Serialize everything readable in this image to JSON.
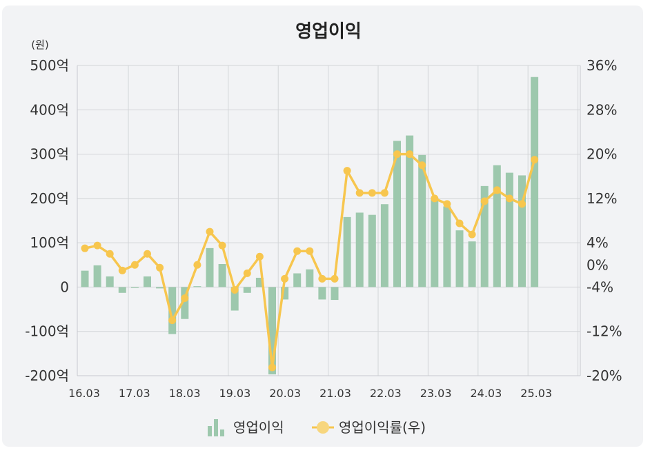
{
  "chart_data": {
    "type": "bar+line",
    "title": "영업이익",
    "left_unit": "(원)",
    "left_ticks": [
      "500억",
      "400억",
      "300억",
      "200억",
      "100억",
      "0",
      "-100억",
      "-200억"
    ],
    "left_range": [
      -200,
      500
    ],
    "right_ticks": [
      "36%",
      "28%",
      "20%",
      "12%",
      "4%",
      "0%",
      "-4%",
      "-12%",
      "-20%"
    ],
    "right_range": [
      -20,
      36
    ],
    "x_tick_labels": [
      "16.03",
      "17.03",
      "18.03",
      "19.03",
      "20.03",
      "21.03",
      "22.03",
      "23.03",
      "24.03",
      "25.03"
    ],
    "categories": [
      "16.03",
      "16.06",
      "16.09",
      "16.12",
      "17.03",
      "17.06",
      "17.09",
      "17.12",
      "18.03",
      "18.06",
      "18.09",
      "18.12",
      "19.03",
      "19.06",
      "19.09",
      "19.12",
      "20.03",
      "20.06",
      "20.09",
      "20.12",
      "21.03",
      "21.06",
      "21.09",
      "21.12",
      "22.03",
      "22.06",
      "22.09",
      "22.12",
      "23.03",
      "23.06",
      "23.09",
      "23.12",
      "24.03",
      "24.06",
      "24.09",
      "24.12",
      "25.03"
    ],
    "series": [
      {
        "name": "영업이익",
        "kind": "bar",
        "color": "#9dc8ad",
        "values": [
          37,
          49,
          24,
          -13,
          -2,
          24,
          -3,
          -106,
          -72,
          2,
          88,
          52,
          -53,
          -13,
          21,
          -197,
          -28,
          31,
          40,
          -28,
          -29,
          158,
          168,
          163,
          187,
          330,
          342,
          298,
          200,
          182,
          128,
          103,
          228,
          275,
          258,
          252,
          474
        ]
      },
      {
        "name": "영업이익률(우)",
        "kind": "line",
        "color": "#f7c64e",
        "values": [
          3.0,
          3.5,
          2.0,
          -1.0,
          0.0,
          2.0,
          -0.5,
          -10.0,
          -6.0,
          0.0,
          6.0,
          3.5,
          -4.5,
          -1.5,
          1.5,
          -18.5,
          -2.5,
          2.5,
          2.5,
          -2.5,
          -2.5,
          17.0,
          13.0,
          13.0,
          13.0,
          20.0,
          20.0,
          18.0,
          12.0,
          11.0,
          7.5,
          5.5,
          11.5,
          13.5,
          12.0,
          11.0,
          19.0
        ]
      }
    ],
    "legend": [
      "영업이익",
      "영업이익률(우)"
    ],
    "grid": true,
    "legend_position": "bottom"
  }
}
